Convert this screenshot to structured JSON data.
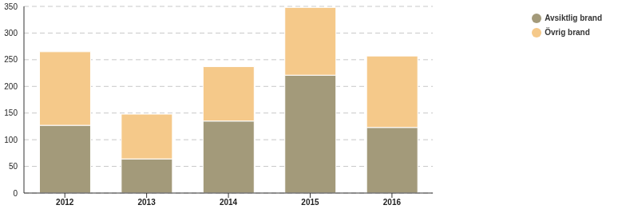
{
  "chart_data": {
    "type": "bar",
    "categories": [
      "2012",
      "2013",
      "2014",
      "2015",
      "2016"
    ],
    "series": [
      {
        "name": "Avsiktlig brand",
        "color": "#a39a7a",
        "values": [
          127,
          64,
          135,
          221,
          123
        ]
      },
      {
        "name": "Övrig brand",
        "color": "#f5c98a",
        "values": [
          138,
          84,
          102,
          127,
          134
        ]
      }
    ],
    "ylim": [
      0,
      350
    ],
    "yticks": [
      0,
      50,
      100,
      150,
      200,
      250,
      300,
      350
    ],
    "grid": true,
    "stacked": true,
    "legend": "right"
  }
}
